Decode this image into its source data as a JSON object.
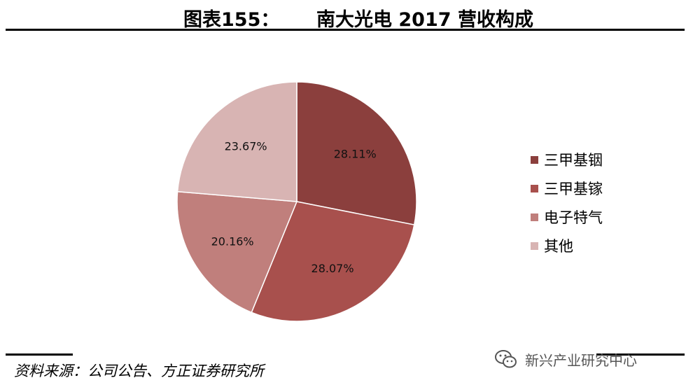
{
  "header": {
    "figure_label": "图表155：",
    "title": "南大光电 2017 营收构成"
  },
  "chart_data": {
    "type": "pie",
    "categories": [
      "三甲基铟",
      "三甲基镓",
      "电子特气",
      "其他"
    ],
    "values": [
      28.11,
      28.07,
      20.16,
      23.67
    ],
    "labels": [
      "28.11%",
      "28.07%",
      "20.16%",
      "23.67%"
    ],
    "colors": [
      "#8b3f3d",
      "#a8504d",
      "#c07f7c",
      "#d8b4b3"
    ],
    "legend_position": "right",
    "title": ""
  },
  "footer": {
    "source": "资料来源：公司公告、方正证券研究所",
    "watermark": "新兴产业研究中心"
  }
}
